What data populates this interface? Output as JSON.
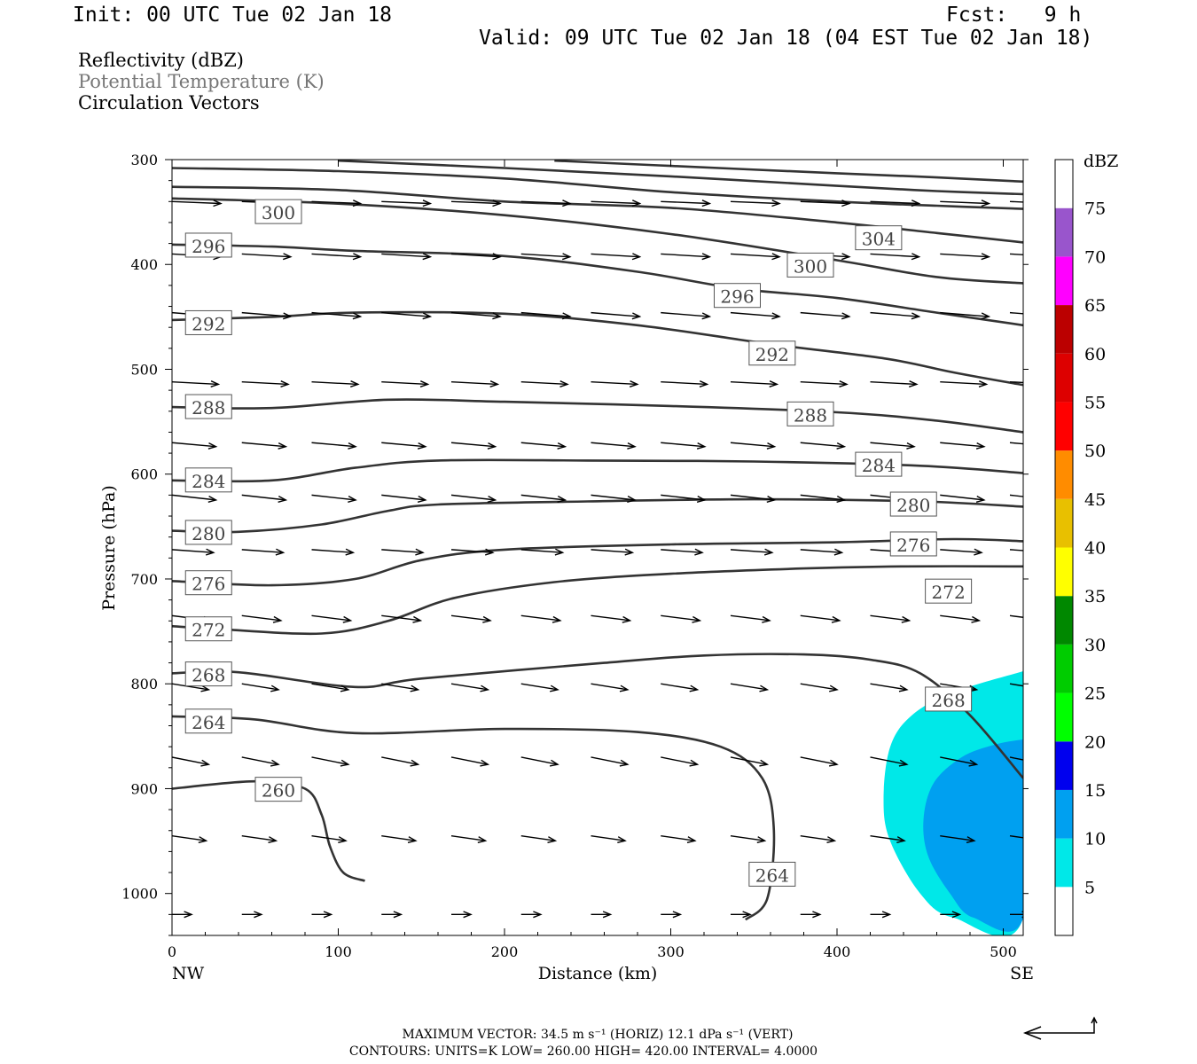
{
  "header": {
    "init": "Init: 00 UTC Tue 02 Jan 18",
    "fcst": "Fcst:   9 h",
    "valid": "Valid: 09 UTC Tue 02 Jan 18 (04 EST Tue 02 Jan 18)"
  },
  "legend": {
    "line1": "Reflectivity (dBZ)",
    "line2": "Potential Temperature (K)",
    "line3": "Circulation Vectors"
  },
  "footer": {
    "line1": "MAXIMUM VECTOR:  34.5 m s⁻¹ (HORIZ)        12.1 dPa s⁻¹ (VERT)",
    "line2": "CONTOURS:  UNITS=K  LOW=  260.00        HIGH=  420.00          INTERVAL=    4.0000"
  },
  "colors": {
    "contour": "#333333",
    "refl_5": "#00e8e8",
    "refl_10": "#00a0f0"
  },
  "chart_data": {
    "type": "cross-section",
    "xlabel": "Distance (km)",
    "ylabel": "Pressure (hPa)",
    "x_left_label": "NW",
    "x_right_label": "SE",
    "xlim": [
      0,
      512
    ],
    "ylim": [
      300,
      1040
    ],
    "xticks": [
      0,
      100,
      200,
      300,
      400,
      500
    ],
    "yticks": [
      300,
      400,
      500,
      600,
      700,
      800,
      900,
      1000
    ],
    "grid": false,
    "colorbar": {
      "title": "dBZ",
      "levels": [
        5,
        10,
        15,
        20,
        25,
        30,
        35,
        40,
        45,
        50,
        55,
        60,
        65,
        70,
        75
      ],
      "colors": [
        "#00e8e8",
        "#00a0f0",
        "#0000ee",
        "#00ff00",
        "#00cc00",
        "#008800",
        "#ffff00",
        "#e8c000",
        "#ff8c00",
        "#ff0000",
        "#dd0000",
        "#bb0000",
        "#ff00ff",
        "#9955cc"
      ]
    },
    "reflectivity_regions": [
      {
        "level": 5,
        "points": [
          [
            512,
            788
          ],
          [
            470,
            808
          ],
          [
            445,
            830
          ],
          [
            432,
            860
          ],
          [
            428,
            910
          ],
          [
            432,
            950
          ],
          [
            450,
            1000
          ],
          [
            470,
            1023
          ],
          [
            512,
            1023
          ]
        ]
      },
      {
        "level": 10,
        "points": [
          [
            512,
            853
          ],
          [
            495,
            858
          ],
          [
            475,
            870
          ],
          [
            458,
            895
          ],
          [
            452,
            930
          ],
          [
            455,
            965
          ],
          [
            468,
            1000
          ],
          [
            482,
            1023
          ],
          [
            512,
            1023
          ]
        ]
      }
    ],
    "isentropes": [
      {
        "value": 260,
        "points": [
          [
            0,
            900
          ],
          [
            50,
            893
          ],
          [
            80,
            900
          ],
          [
            90,
            925
          ],
          [
            95,
            955
          ],
          [
            103,
            980
          ],
          [
            116,
            988
          ]
        ]
      },
      {
        "value": 264,
        "points": [
          [
            0,
            831
          ],
          [
            50,
            834
          ],
          [
            110,
            847
          ],
          [
            200,
            843
          ],
          [
            280,
            846
          ],
          [
            330,
            860
          ],
          [
            355,
            890
          ],
          [
            362,
            940
          ],
          [
            358,
            1005
          ],
          [
            345,
            1025
          ]
        ]
      },
      {
        "value": 268,
        "points": [
          [
            0,
            790
          ],
          [
            40,
            789
          ],
          [
            110,
            803
          ],
          [
            150,
            795
          ],
          [
            260,
            780
          ],
          [
            320,
            773
          ],
          [
            380,
            772
          ],
          [
            420,
            777
          ],
          [
            450,
            790
          ],
          [
            480,
            830
          ],
          [
            512,
            890
          ]
        ]
      },
      {
        "value": 272,
        "points": [
          [
            0,
            745
          ],
          [
            30,
            748
          ],
          [
            90,
            752
          ],
          [
            130,
            740
          ],
          [
            170,
            718
          ],
          [
            230,
            703
          ],
          [
            300,
            695
          ],
          [
            380,
            690
          ],
          [
            440,
            688
          ],
          [
            512,
            688
          ]
        ]
      },
      {
        "value": 276,
        "points": [
          [
            0,
            702
          ],
          [
            60,
            706
          ],
          [
            110,
            700
          ],
          [
            150,
            682
          ],
          [
            200,
            672
          ],
          [
            300,
            667
          ],
          [
            400,
            665
          ],
          [
            470,
            662
          ],
          [
            512,
            664
          ]
        ]
      },
      {
        "value": 280,
        "points": [
          [
            0,
            654
          ],
          [
            40,
            655
          ],
          [
            90,
            648
          ],
          [
            130,
            635
          ],
          [
            160,
            629
          ],
          [
            250,
            626
          ],
          [
            350,
            624
          ],
          [
            450,
            626
          ],
          [
            512,
            631
          ]
        ]
      },
      {
        "value": 284,
        "points": [
          [
            0,
            606
          ],
          [
            60,
            606
          ],
          [
            110,
            594
          ],
          [
            160,
            587
          ],
          [
            250,
            587
          ],
          [
            350,
            588
          ],
          [
            450,
            592
          ],
          [
            512,
            599
          ]
        ]
      },
      {
        "value": 288,
        "points": [
          [
            0,
            536
          ],
          [
            60,
            537
          ],
          [
            130,
            529
          ],
          [
            200,
            531
          ],
          [
            300,
            535
          ],
          [
            400,
            541
          ],
          [
            460,
            549
          ],
          [
            512,
            560
          ]
        ]
      },
      {
        "value": 292,
        "points": [
          [
            0,
            453
          ],
          [
            60,
            450
          ],
          [
            110,
            446
          ],
          [
            200,
            447
          ],
          [
            280,
            458
          ],
          [
            360,
            476
          ],
          [
            430,
            490
          ],
          [
            470,
            503
          ],
          [
            512,
            515
          ]
        ]
      },
      {
        "value": 296,
        "points": [
          [
            0,
            381
          ],
          [
            60,
            383
          ],
          [
            110,
            387
          ],
          [
            200,
            392
          ],
          [
            280,
            407
          ],
          [
            340,
            423
          ],
          [
            400,
            432
          ],
          [
            460,
            446
          ],
          [
            512,
            458
          ]
        ]
      },
      {
        "value": 300,
        "points": [
          [
            0,
            337
          ],
          [
            100,
            342
          ],
          [
            200,
            353
          ],
          [
            300,
            371
          ],
          [
            400,
            396
          ],
          [
            460,
            412
          ],
          [
            512,
            418
          ]
        ]
      },
      {
        "value": 304,
        "points": [
          [
            0,
            326
          ],
          [
            100,
            329
          ],
          [
            200,
            340
          ],
          [
            300,
            346
          ],
          [
            400,
            360
          ],
          [
            460,
            370
          ],
          [
            512,
            379
          ]
        ]
      },
      {
        "value": 308,
        "points": [
          [
            0,
            308
          ],
          [
            100,
            311
          ],
          [
            200,
            318
          ],
          [
            300,
            331
          ],
          [
            400,
            340
          ],
          [
            460,
            344
          ],
          [
            512,
            347
          ]
        ]
      },
      {
        "value": 312,
        "points": [
          [
            100,
            301
          ],
          [
            200,
            308
          ],
          [
            300,
            316
          ],
          [
            400,
            325
          ],
          [
            460,
            330
          ],
          [
            512,
            333
          ]
        ]
      },
      {
        "value": 316,
        "points": [
          [
            230,
            301
          ],
          [
            300,
            306
          ],
          [
            400,
            313
          ],
          [
            460,
            317
          ],
          [
            512,
            321
          ]
        ]
      }
    ],
    "contour_labels": [
      {
        "text": "300",
        "x": 64,
        "y": 350
      },
      {
        "text": "296",
        "x": 22,
        "y": 382
      },
      {
        "text": "304",
        "x": 425,
        "y": 375
      },
      {
        "text": "300",
        "x": 384,
        "y": 401
      },
      {
        "text": "296",
        "x": 340,
        "y": 430
      },
      {
        "text": "292",
        "x": 22,
        "y": 456
      },
      {
        "text": "292",
        "x": 361,
        "y": 485
      },
      {
        "text": "288",
        "x": 22,
        "y": 536
      },
      {
        "text": "288",
        "x": 384,
        "y": 543
      },
      {
        "text": "284",
        "x": 425,
        "y": 591
      },
      {
        "text": "284",
        "x": 22,
        "y": 606
      },
      {
        "text": "280",
        "x": 446,
        "y": 629
      },
      {
        "text": "280",
        "x": 22,
        "y": 656
      },
      {
        "text": "276",
        "x": 446,
        "y": 667
      },
      {
        "text": "276",
        "x": 22,
        "y": 704
      },
      {
        "text": "272",
        "x": 467,
        "y": 712
      },
      {
        "text": "272",
        "x": 22,
        "y": 748
      },
      {
        "text": "268",
        "x": 22,
        "y": 791
      },
      {
        "text": "268",
        "x": 467,
        "y": 815
      },
      {
        "text": "264",
        "x": 22,
        "y": 836
      },
      {
        "text": "260",
        "x": 64,
        "y": 901
      },
      {
        "text": "264",
        "x": 361,
        "y": 982
      }
    ],
    "vector_rows": [
      {
        "p": 340,
        "x0": 0,
        "dx": 42,
        "n": 13,
        "u": 1.0,
        "v": 0.04
      },
      {
        "p": 390,
        "x0": 0,
        "dx": 42,
        "n": 13,
        "u": 1.0,
        "v": 0.06
      },
      {
        "p": 446,
        "x0": 0,
        "dx": 42,
        "n": 13,
        "u": 1.0,
        "v": 0.08
      },
      {
        "p": 512,
        "x0": 0,
        "dx": 42,
        "n": 13,
        "u": 0.95,
        "v": 0.05
      },
      {
        "p": 570,
        "x0": 0,
        "dx": 42,
        "n": 13,
        "u": 0.9,
        "v": 0.08
      },
      {
        "p": 620,
        "x0": 0,
        "dx": 42,
        "n": 13,
        "u": 0.9,
        "v": 0.1
      },
      {
        "p": 672,
        "x0": 0,
        "dx": 42,
        "n": 13,
        "u": 0.85,
        "v": 0.06
      },
      {
        "p": 735,
        "x0": 0,
        "dx": 42,
        "n": 13,
        "u": 0.8,
        "v": 0.1
      },
      {
        "p": 800,
        "x0": 0,
        "dx": 42,
        "n": 13,
        "u": 0.75,
        "v": 0.12
      },
      {
        "p": 870,
        "x0": 0,
        "dx": 42,
        "n": 13,
        "u": 0.75,
        "v": 0.15
      },
      {
        "p": 945,
        "x0": 0,
        "dx": 42,
        "n": 13,
        "u": 0.7,
        "v": 0.1
      },
      {
        "p": 1020,
        "x0": 0,
        "dx": 42,
        "n": 13,
        "u": 0.4,
        "v": 0.0
      }
    ]
  }
}
